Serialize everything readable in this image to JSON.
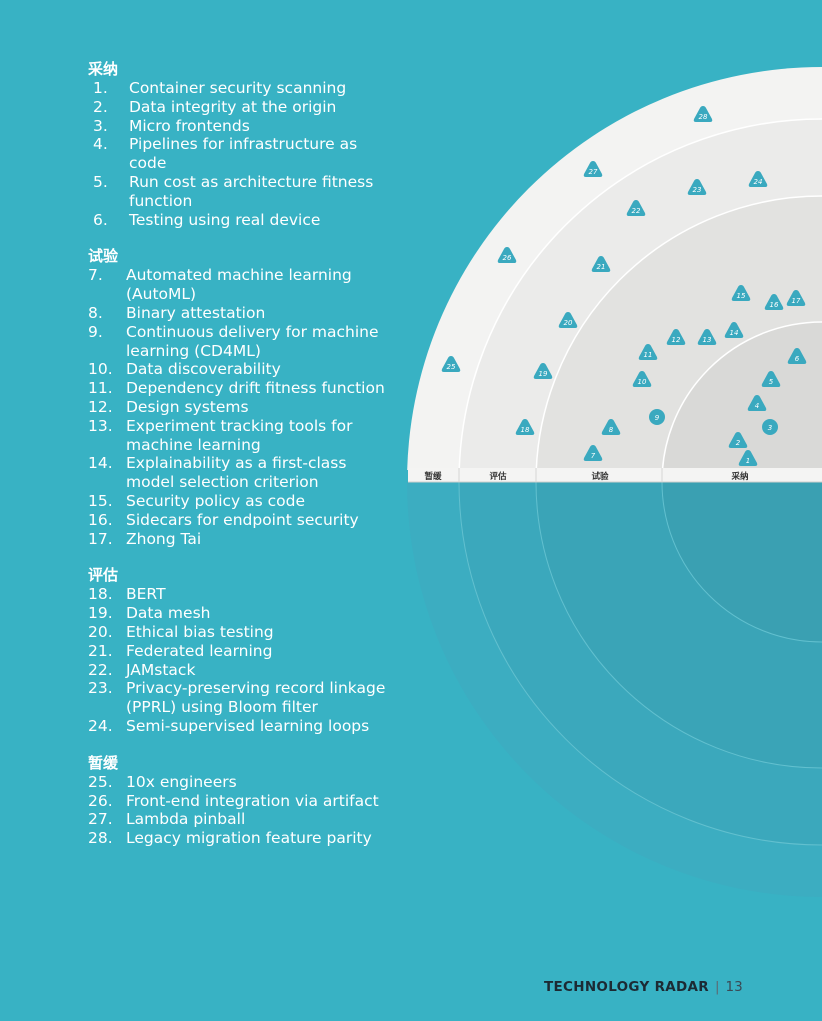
{
  "sections": [
    {
      "title": "采纳",
      "items": [
        {
          "num": "1.",
          "text": "Container security scanning"
        },
        {
          "num": "2.",
          "text": "Data integrity at the origin"
        },
        {
          "num": "3.",
          "text": "Micro frontends"
        },
        {
          "num": "4.",
          "text": "Pipelines for infrastructure as code"
        },
        {
          "num": "5.",
          "text": "Run cost as architecture fitness function"
        },
        {
          "num": "6.",
          "text": "Testing using real device"
        }
      ]
    },
    {
      "title": "试验",
      "items": [
        {
          "num": "7.",
          "text": "Automated machine learning (AutoML)"
        },
        {
          "num": "8.",
          "text": "Binary attestation"
        },
        {
          "num": "9.",
          "text": "Continuous delivery for machine learning (CD4ML)"
        },
        {
          "num": "10.",
          "text": "Data discoverability"
        },
        {
          "num": "11.",
          "text": "Dependency drift fitness function"
        },
        {
          "num": "12.",
          "text": "Design systems"
        },
        {
          "num": "13.",
          "text": "Experiment tracking tools for machine learning"
        },
        {
          "num": "14.",
          "text": "Explainability as a first-class model selection criterion"
        },
        {
          "num": "15.",
          "text": "Security policy as code"
        },
        {
          "num": "16.",
          "text": "Sidecars for endpoint security"
        },
        {
          "num": "17.",
          "text": "Zhong Tai"
        }
      ]
    },
    {
      "title": "评估",
      "items": [
        {
          "num": "18.",
          "text": "BERT"
        },
        {
          "num": "19.",
          "text": "Data mesh"
        },
        {
          "num": "20.",
          "text": "Ethical bias testing"
        },
        {
          "num": "21.",
          "text": "Federated learning"
        },
        {
          "num": "22.",
          "text": "JAMstack"
        },
        {
          "num": "23.",
          "text": "Privacy-preserving record linkage (PPRL) using Bloom filter"
        },
        {
          "num": "24.",
          "text": "Semi-supervised learning loops"
        }
      ]
    },
    {
      "title": "暂缓",
      "items": [
        {
          "num": "25.",
          "text": "10x engineers"
        },
        {
          "num": "26.",
          "text": "Front-end integration via artifact"
        },
        {
          "num": "27.",
          "text": "Lambda pinball"
        },
        {
          "num": "28.",
          "text": "Legacy migration feature parity"
        }
      ]
    }
  ],
  "radar": {
    "ring_labels": [
      "暂缓",
      "评估",
      "试验",
      "采纳"
    ],
    "blips": [
      {
        "label": "1",
        "ring": "采纳",
        "shape": "triangle"
      },
      {
        "label": "2",
        "ring": "采纳",
        "shape": "triangle"
      },
      {
        "label": "3",
        "ring": "采纳",
        "shape": "circle"
      },
      {
        "label": "4",
        "ring": "采纳",
        "shape": "triangle"
      },
      {
        "label": "5",
        "ring": "采纳",
        "shape": "triangle"
      },
      {
        "label": "6",
        "ring": "采纳",
        "shape": "triangle"
      },
      {
        "label": "7",
        "ring": "试验",
        "shape": "triangle"
      },
      {
        "label": "8",
        "ring": "试验",
        "shape": "triangle"
      },
      {
        "label": "9",
        "ring": "试验",
        "shape": "circle"
      },
      {
        "label": "10",
        "ring": "试验",
        "shape": "triangle"
      },
      {
        "label": "11",
        "ring": "试验",
        "shape": "triangle"
      },
      {
        "label": "12",
        "ring": "试验",
        "shape": "triangle"
      },
      {
        "label": "13",
        "ring": "试验",
        "shape": "triangle"
      },
      {
        "label": "14",
        "ring": "试验",
        "shape": "triangle"
      },
      {
        "label": "15",
        "ring": "试验",
        "shape": "triangle"
      },
      {
        "label": "16",
        "ring": "试验",
        "shape": "triangle"
      },
      {
        "label": "17",
        "ring": "试验",
        "shape": "triangle"
      },
      {
        "label": "18",
        "ring": "评估",
        "shape": "triangle"
      },
      {
        "label": "19",
        "ring": "评估",
        "shape": "triangle"
      },
      {
        "label": "20",
        "ring": "评估",
        "shape": "triangle"
      },
      {
        "label": "21",
        "ring": "评估",
        "shape": "triangle"
      },
      {
        "label": "22",
        "ring": "评估",
        "shape": "triangle"
      },
      {
        "label": "23",
        "ring": "评估",
        "shape": "triangle"
      },
      {
        "label": "24",
        "ring": "评估",
        "shape": "triangle"
      },
      {
        "label": "25",
        "ring": "暂缓",
        "shape": "triangle"
      },
      {
        "label": "26",
        "ring": "暂缓",
        "shape": "triangle"
      },
      {
        "label": "27",
        "ring": "暂缓",
        "shape": "triangle"
      },
      {
        "label": "28",
        "ring": "暂缓",
        "shape": "triangle"
      }
    ]
  },
  "footer": {
    "brand": "TECHNOLOGY RADAR",
    "separator": "|",
    "page": "13"
  },
  "colors": {
    "background": "#38b2c4",
    "blip": "#3aa9bf",
    "ring_hold": "#f3f3f2",
    "ring_assess": "#ebebea",
    "ring_trial": "#e2e2e0",
    "ring_adopt": "#d9d9d7",
    "footer_text": "#1c2a33"
  }
}
